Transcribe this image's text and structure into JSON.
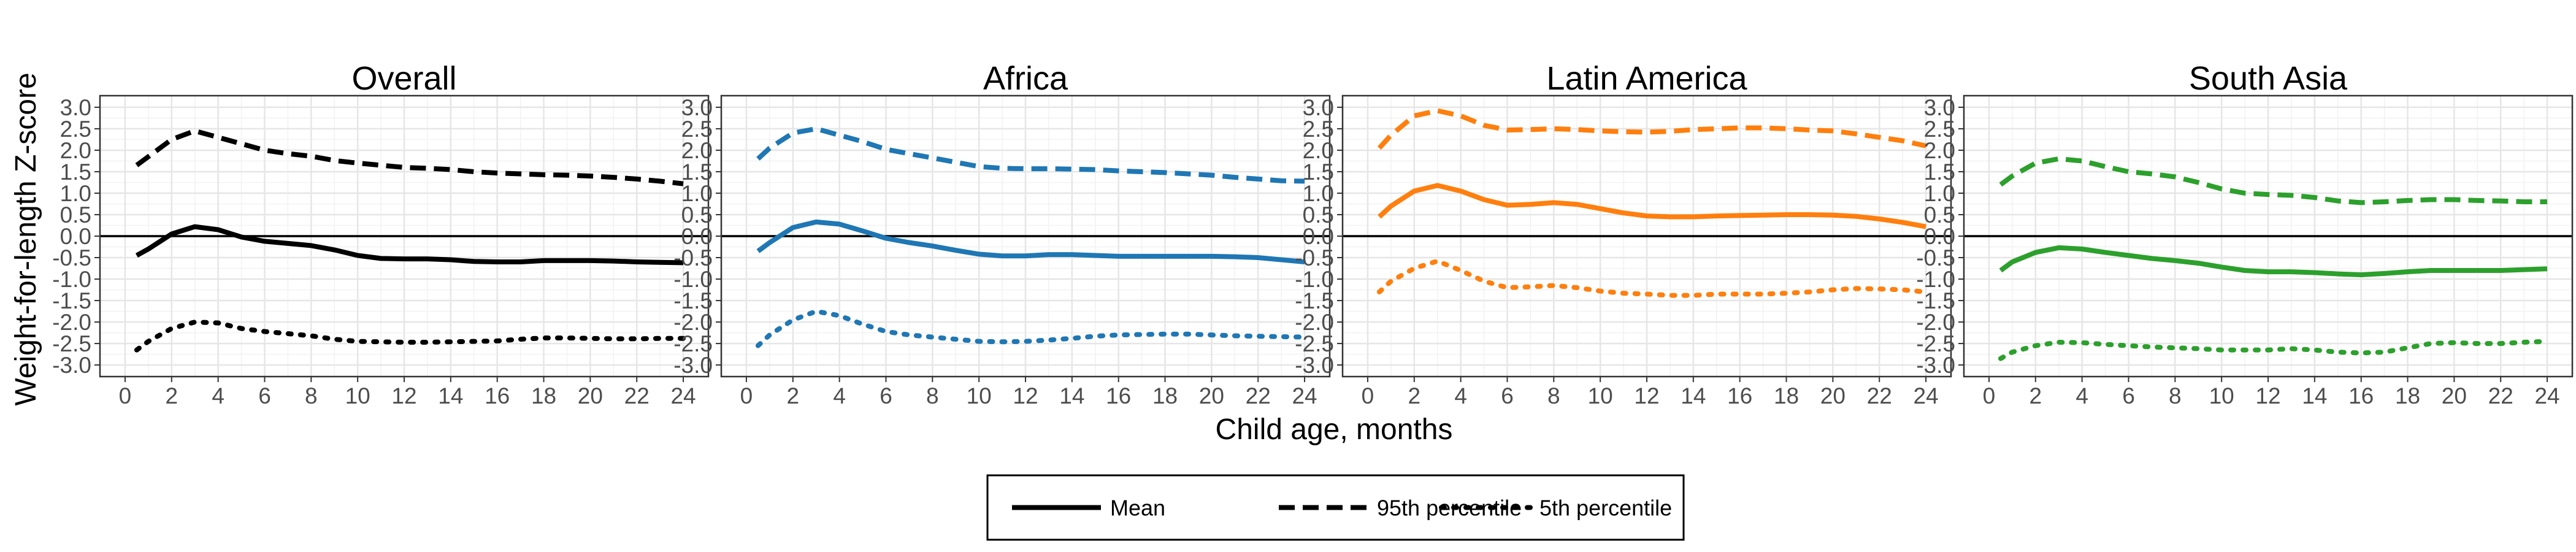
{
  "chart_data": {
    "type": "line",
    "ylabel": "Weight-for-length Z-score",
    "xlabel": "Child age, months",
    "xlim": [
      0,
      24
    ],
    "ylim": [
      -3.0,
      3.0
    ],
    "x_ticks": [
      0,
      2,
      4,
      6,
      8,
      10,
      12,
      14,
      16,
      18,
      20,
      22,
      24
    ],
    "y_ticks": [
      -3.0,
      -2.5,
      -2.0,
      -1.5,
      -1.0,
      -0.5,
      0.0,
      0.5,
      1.0,
      1.5,
      2.0,
      2.5,
      3.0
    ],
    "reference_line_y": 0,
    "grid": true,
    "legend_position": "bottom",
    "legend": [
      {
        "label": "Mean",
        "style": "solid"
      },
      {
        "label": "95th percentile",
        "style": "dashed"
      },
      {
        "label": "5th percentile",
        "style": "dotted"
      }
    ],
    "x": [
      0.5,
      1,
      2,
      3,
      4,
      5,
      6,
      7,
      8,
      9,
      10,
      11,
      12,
      13,
      14,
      15,
      16,
      17,
      18,
      19,
      20,
      21,
      22,
      23,
      24
    ],
    "panels": [
      {
        "title": "Overall",
        "color": "#000000",
        "series": [
          {
            "name": "Mean",
            "style": "solid",
            "values": [
              -0.45,
              -0.3,
              0.05,
              0.22,
              0.15,
              -0.02,
              -0.12,
              -0.17,
              -0.22,
              -0.32,
              -0.45,
              -0.52,
              -0.53,
              -0.53,
              -0.55,
              -0.59,
              -0.6,
              -0.6,
              -0.57,
              -0.57,
              -0.57,
              -0.58,
              -0.6,
              -0.61,
              -0.62
            ]
          },
          {
            "name": "95th percentile",
            "style": "dashed",
            "values": [
              1.65,
              1.85,
              2.25,
              2.45,
              2.3,
              2.15,
              2.0,
              1.92,
              1.86,
              1.76,
              1.7,
              1.65,
              1.6,
              1.58,
              1.55,
              1.5,
              1.47,
              1.45,
              1.43,
              1.42,
              1.4,
              1.37,
              1.33,
              1.28,
              1.22
            ]
          },
          {
            "name": "5th percentile",
            "style": "dotted",
            "values": [
              -2.65,
              -2.45,
              -2.15,
              -2.0,
              -2.02,
              -2.15,
              -2.22,
              -2.27,
              -2.32,
              -2.4,
              -2.45,
              -2.46,
              -2.47,
              -2.47,
              -2.46,
              -2.45,
              -2.44,
              -2.4,
              -2.37,
              -2.37,
              -2.38,
              -2.39,
              -2.39,
              -2.38,
              -2.38
            ]
          }
        ]
      },
      {
        "title": "Africa",
        "color": "#1f77b4",
        "series": [
          {
            "name": "Mean",
            "style": "solid",
            "values": [
              -0.35,
              -0.15,
              0.2,
              0.33,
              0.28,
              0.12,
              -0.05,
              -0.15,
              -0.23,
              -0.33,
              -0.42,
              -0.46,
              -0.46,
              -0.43,
              -0.43,
              -0.45,
              -0.47,
              -0.47,
              -0.47,
              -0.47,
              -0.47,
              -0.48,
              -0.5,
              -0.55,
              -0.6
            ]
          },
          {
            "name": "95th percentile",
            "style": "dashed",
            "values": [
              1.8,
              2.05,
              2.4,
              2.5,
              2.35,
              2.2,
              2.02,
              1.92,
              1.82,
              1.72,
              1.62,
              1.58,
              1.57,
              1.57,
              1.56,
              1.55,
              1.52,
              1.5,
              1.48,
              1.45,
              1.42,
              1.37,
              1.33,
              1.29,
              1.28
            ]
          },
          {
            "name": "5th percentile",
            "style": "dotted",
            "values": [
              -2.55,
              -2.3,
              -1.95,
              -1.75,
              -1.85,
              -2.05,
              -2.22,
              -2.3,
              -2.35,
              -2.4,
              -2.45,
              -2.46,
              -2.45,
              -2.42,
              -2.38,
              -2.33,
              -2.3,
              -2.29,
              -2.28,
              -2.28,
              -2.3,
              -2.32,
              -2.33,
              -2.34,
              -2.35
            ]
          }
        ]
      },
      {
        "title": "Latin America",
        "color": "#ff7f0e",
        "series": [
          {
            "name": "Mean",
            "style": "solid",
            "values": [
              0.45,
              0.7,
              1.05,
              1.18,
              1.05,
              0.85,
              0.72,
              0.74,
              0.78,
              0.74,
              0.64,
              0.54,
              0.47,
              0.45,
              0.45,
              0.47,
              0.48,
              0.49,
              0.5,
              0.5,
              0.49,
              0.46,
              0.4,
              0.32,
              0.22
            ]
          },
          {
            "name": "95th percentile",
            "style": "dashed",
            "values": [
              2.05,
              2.35,
              2.8,
              2.92,
              2.8,
              2.58,
              2.47,
              2.48,
              2.5,
              2.48,
              2.45,
              2.43,
              2.42,
              2.44,
              2.48,
              2.5,
              2.52,
              2.52,
              2.5,
              2.47,
              2.45,
              2.38,
              2.3,
              2.22,
              2.1
            ]
          },
          {
            "name": "5th percentile",
            "style": "dotted",
            "values": [
              -1.3,
              -1.05,
              -0.75,
              -0.58,
              -0.8,
              -1.05,
              -1.2,
              -1.18,
              -1.15,
              -1.2,
              -1.28,
              -1.33,
              -1.35,
              -1.38,
              -1.38,
              -1.35,
              -1.35,
              -1.35,
              -1.33,
              -1.3,
              -1.25,
              -1.22,
              -1.23,
              -1.25,
              -1.3
            ]
          }
        ]
      },
      {
        "title": "South Asia",
        "color": "#2ca02c",
        "series": [
          {
            "name": "Mean",
            "style": "solid",
            "values": [
              -0.8,
              -0.6,
              -0.38,
              -0.27,
              -0.3,
              -0.38,
              -0.45,
              -0.52,
              -0.57,
              -0.63,
              -0.72,
              -0.8,
              -0.83,
              -0.83,
              -0.85,
              -0.88,
              -0.9,
              -0.87,
              -0.83,
              -0.8,
              -0.8,
              -0.8,
              -0.8,
              -0.78,
              -0.76
            ]
          },
          {
            "name": "95th percentile",
            "style": "dashed",
            "values": [
              1.2,
              1.4,
              1.7,
              1.8,
              1.75,
              1.62,
              1.5,
              1.45,
              1.38,
              1.25,
              1.1,
              1.0,
              0.97,
              0.95,
              0.9,
              0.82,
              0.78,
              0.8,
              0.83,
              0.85,
              0.85,
              0.83,
              0.82,
              0.8,
              0.8
            ]
          },
          {
            "name": "5th percentile",
            "style": "dotted",
            "values": [
              -2.85,
              -2.7,
              -2.55,
              -2.47,
              -2.48,
              -2.52,
              -2.55,
              -2.58,
              -2.6,
              -2.62,
              -2.65,
              -2.65,
              -2.65,
              -2.62,
              -2.65,
              -2.7,
              -2.72,
              -2.7,
              -2.6,
              -2.5,
              -2.48,
              -2.5,
              -2.5,
              -2.47,
              -2.45
            ]
          }
        ]
      }
    ]
  }
}
